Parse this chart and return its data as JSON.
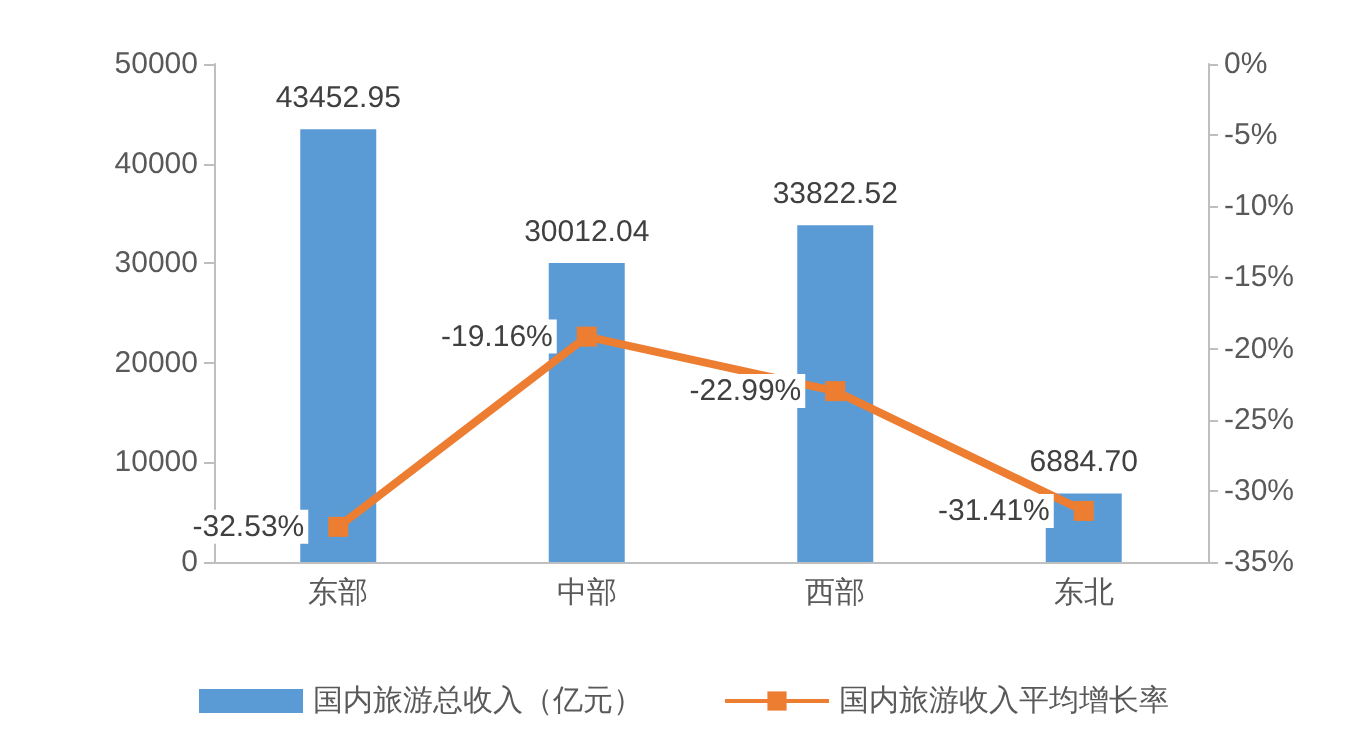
{
  "chart_data": {
    "type": "bar",
    "categories": [
      "东部",
      "中部",
      "西部",
      "东北"
    ],
    "series": [
      {
        "name": "国内旅游总收入（亿元）",
        "color": "#5b9bd5",
        "values": [
          43452.95,
          30012.04,
          33822.52,
          6884.7
        ],
        "value_labels": [
          "43452.95",
          "30012.04",
          "33822.52",
          "6884.70"
        ]
      },
      {
        "name": "国内旅游收入平均增长率",
        "type": "line",
        "axis": "y2",
        "color": "#ed7d31",
        "values": [
          -32.53,
          -19.16,
          -22.99,
          -31.41
        ],
        "value_labels": [
          "-32.53%",
          "-19.16%",
          "-22.99%",
          "-31.41%"
        ],
        "marker": "square"
      }
    ],
    "ylim": [
      0,
      50000
    ],
    "yticks": [
      0,
      10000,
      20000,
      30000,
      40000,
      50000
    ],
    "y2lim": [
      -35,
      0
    ],
    "y2ticks": [
      {
        "value": 0,
        "label": "0%"
      },
      {
        "value": -5,
        "label": "-5%"
      },
      {
        "value": -10,
        "label": "-10%"
      },
      {
        "value": -15,
        "label": "-15%"
      },
      {
        "value": -20,
        "label": "-20%"
      },
      {
        "value": -25,
        "label": "-25%"
      },
      {
        "value": -30,
        "label": "-30%"
      },
      {
        "value": -35,
        "label": "-35%"
      }
    ],
    "grid": false,
    "legend": "bottom"
  }
}
